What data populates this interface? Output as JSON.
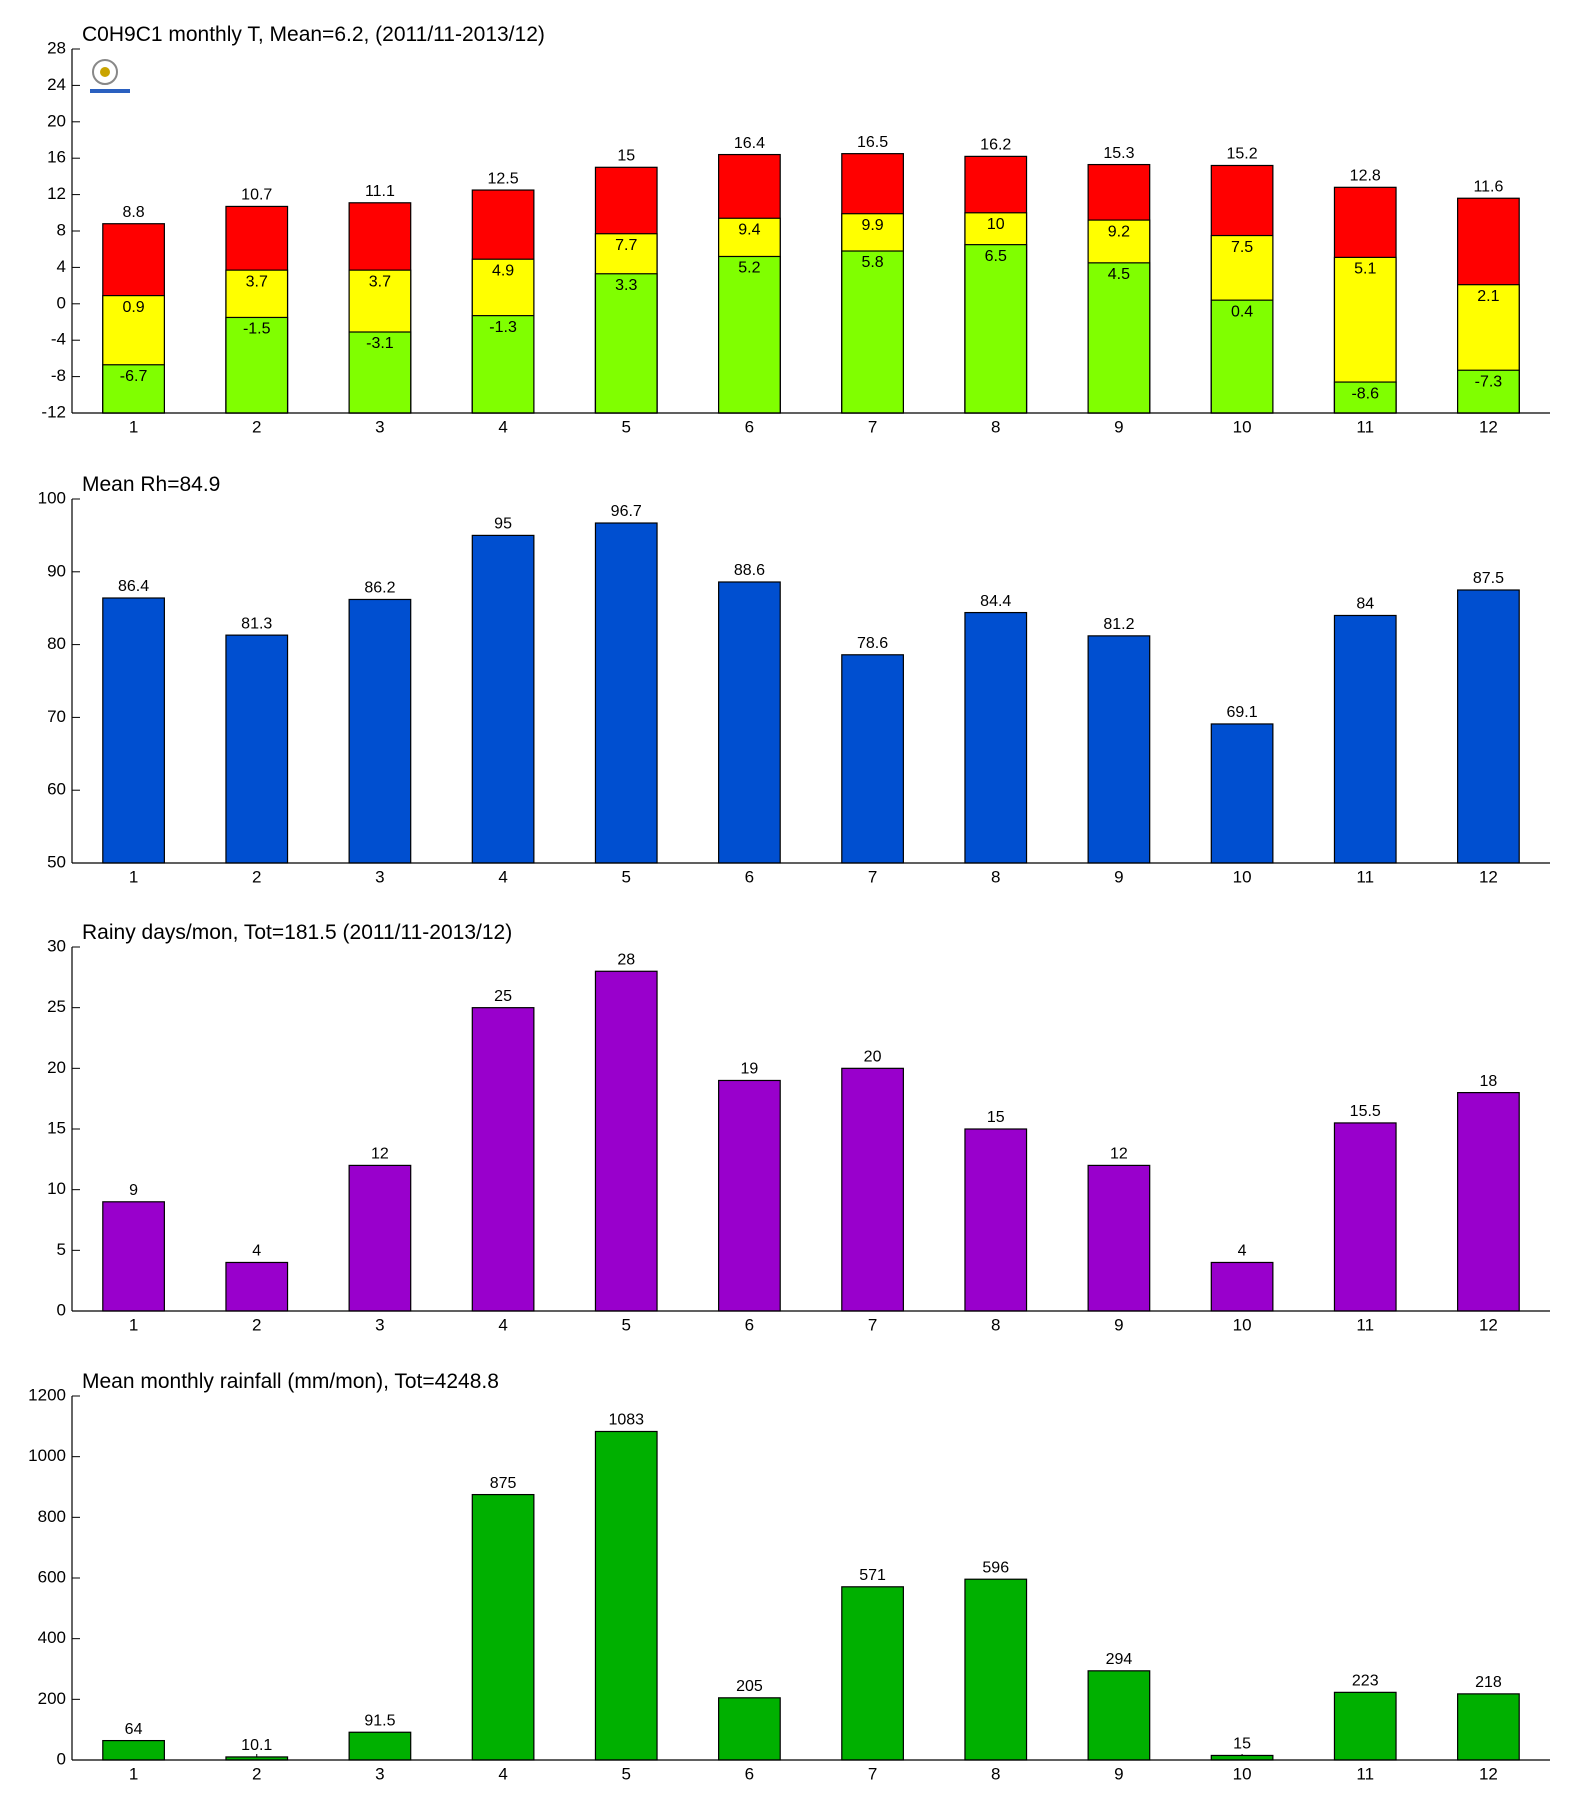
{
  "chart_data": [
    {
      "type": "bar",
      "title": "C0H9C1 monthly T, Mean=6.2, (2011/11-2013/12)",
      "categories": [
        "1",
        "2",
        "3",
        "4",
        "5",
        "6",
        "7",
        "8",
        "9",
        "10",
        "11",
        "12"
      ],
      "series": [
        {
          "color": "#ff0000",
          "values": [
            8.8,
            10.7,
            11.1,
            12.5,
            15,
            16.4,
            16.5,
            16.2,
            15.3,
            15.2,
            12.8,
            11.6
          ]
        },
        {
          "color": "#ffff00",
          "values": [
            0.9,
            3.7,
            3.7,
            4.9,
            7.7,
            9.4,
            9.9,
            10,
            9.2,
            7.5,
            5.1,
            2.1
          ]
        },
        {
          "color": "#80ff00",
          "values": [
            -6.7,
            -1.5,
            -3.1,
            -1.3,
            3.3,
            5.2,
            5.8,
            6.5,
            4.5,
            0.4,
            -8.6,
            -7.3
          ]
        }
      ],
      "ylim": [
        -12,
        28
      ],
      "yticks": [
        -12,
        -8,
        -4,
        0,
        4,
        8,
        12,
        16,
        20,
        24,
        28
      ]
    },
    {
      "type": "bar",
      "title": "Mean Rh=84.9",
      "categories": [
        "1",
        "2",
        "3",
        "4",
        "5",
        "6",
        "7",
        "8",
        "9",
        "10",
        "11",
        "12"
      ],
      "values": [
        86.4,
        81.3,
        86.2,
        95,
        96.7,
        88.6,
        78.6,
        84.4,
        81.2,
        69.1,
        84,
        87.5
      ],
      "color": "#004fd0",
      "ylim": [
        50,
        100
      ],
      "yticks": [
        50,
        60,
        70,
        80,
        90,
        100
      ]
    },
    {
      "type": "bar",
      "title": "Rainy days/mon, Tot=181.5 (2011/11-2013/12)",
      "categories": [
        "1",
        "2",
        "3",
        "4",
        "5",
        "6",
        "7",
        "8",
        "9",
        "10",
        "11",
        "12"
      ],
      "values": [
        9,
        4,
        12,
        25,
        28,
        19,
        20,
        15,
        12,
        4,
        15.5,
        18
      ],
      "color": "#9900cc",
      "ylim": [
        0,
        30
      ],
      "yticks": [
        0,
        5,
        10,
        15,
        20,
        25,
        30
      ]
    },
    {
      "type": "bar",
      "title": "Mean monthly rainfall (mm/mon), Tot=4248.8",
      "categories": [
        "1",
        "2",
        "3",
        "4",
        "5",
        "6",
        "7",
        "8",
        "9",
        "10",
        "11",
        "12"
      ],
      "values": [
        64,
        10.1,
        91.5,
        875,
        1083,
        205,
        571,
        596,
        294,
        15,
        223,
        218
      ],
      "color": "#00b000",
      "ylim": [
        0,
        1200
      ],
      "yticks": [
        0,
        200,
        400,
        600,
        800,
        1000,
        1200
      ]
    }
  ]
}
